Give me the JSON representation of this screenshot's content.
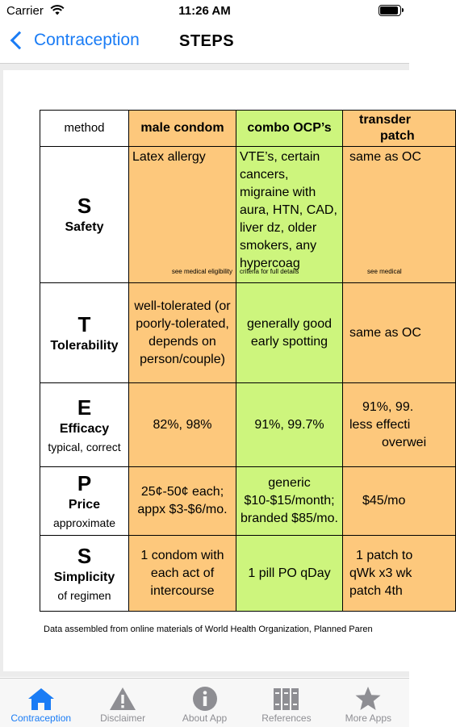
{
  "status": {
    "carrier": "Carrier",
    "time": "11:26 AM"
  },
  "nav": {
    "back_label": "Contraception",
    "title": "STEPS"
  },
  "table": {
    "header": {
      "method": "method",
      "male_condom": "male condom",
      "combo_ocp": "combo OCP’s",
      "transdermal_1": "transder",
      "transdermal_2": "patch"
    },
    "rows": [
      {
        "letter": "S",
        "name": "Safety",
        "sub": "",
        "condom": "Latex allergy",
        "condom_note": "see medical eligibility",
        "ocp": "VTE’s, certain cancers, migraine with aura, HTN, CAD, liver dz, older smokers, any hypercoag",
        "ocp_note": "criteria for full details",
        "patch": "same as OC",
        "patch_note": "see medical"
      },
      {
        "letter": "T",
        "name": "Tolerability",
        "sub": "",
        "condom": "well-tolerated (or poorly-tolerated, depends on person/couple)",
        "ocp": "generally good early spotting",
        "patch": "same as OC"
      },
      {
        "letter": "E",
        "name": "Efficacy",
        "sub": "typical, correct",
        "condom": "82%, 98%",
        "ocp": "91%, 99.7%",
        "patch": [
          "91%, 99.",
          "less effecti",
          "overwei"
        ]
      },
      {
        "letter": "P",
        "name": "Price",
        "sub": "approximate",
        "condom": "25¢-50¢ each; appx $3-$6/mo.",
        "ocp": "generic $10-$15/month; branded $85/mo.",
        "patch": "$45/mo"
      },
      {
        "letter": "S",
        "name": "Simplicity",
        "sub": "of regimen",
        "condom": "1 condom with each act of intercourse",
        "ocp": "1 pill PO qDay",
        "patch": [
          "1 patch to",
          "qWk x3 wk",
          "patch 4th"
        ]
      }
    ],
    "footnote": "Data assembled from online materials of World Health Organization, Planned Paren"
  },
  "tabs": [
    {
      "label": "Contraception",
      "icon": "house-icon",
      "active": true
    },
    {
      "label": "Disclaimer",
      "icon": "warning-icon",
      "active": false
    },
    {
      "label": "About App",
      "icon": "info-icon",
      "active": false
    },
    {
      "label": "References",
      "icon": "books-icon",
      "active": false
    },
    {
      "label": "More Apps",
      "icon": "star-icon",
      "active": false
    }
  ],
  "colors": {
    "accent": "#1a7cf5",
    "condom_col": "#fdc87c",
    "ocp_col": "#cdf57d",
    "inactive": "#8e8e93"
  }
}
